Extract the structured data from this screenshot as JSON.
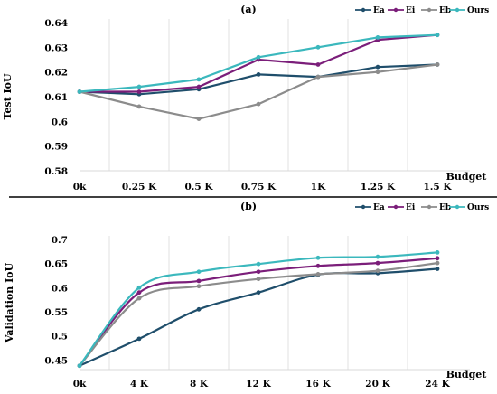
{
  "figure": {
    "palette": {
      "Ea": "#1f4e6b",
      "Ei": "#7b1e7a",
      "Eb": "#8c8c8c",
      "Ours": "#3bb8bd"
    },
    "separator_color": "#000000",
    "grid_color": "#d9d9d9"
  },
  "chart_data": [
    {
      "type": "line",
      "title": "(a)",
      "xlabel": "Budget",
      "ylabel": "Test IoU",
      "categories": [
        "0k",
        "0.25 K",
        "0.5 K",
        "0.75 K",
        "1K",
        "1.25 K",
        "1.5 K"
      ],
      "ylim": [
        0.58,
        0.64
      ],
      "yticks": [
        0.58,
        0.59,
        0.6,
        0.61,
        0.62,
        0.63,
        0.64
      ],
      "ytick_labels": [
        "0.58",
        "0.59",
        "0.6",
        "0.61",
        "0.62",
        "0.63",
        "0.64"
      ],
      "grid": "vertical",
      "legend": "top-right",
      "smooth": false,
      "series": [
        {
          "name": "Ea",
          "values": [
            0.612,
            0.611,
            0.613,
            0.619,
            0.618,
            0.622,
            0.623
          ]
        },
        {
          "name": "Ei",
          "values": [
            0.612,
            0.612,
            0.614,
            0.625,
            0.623,
            0.633,
            0.635
          ]
        },
        {
          "name": "Eb",
          "values": [
            0.612,
            0.606,
            0.601,
            0.607,
            0.618,
            0.62,
            0.623
          ]
        },
        {
          "name": "Ours",
          "values": [
            0.612,
            0.614,
            0.617,
            0.626,
            0.63,
            0.634,
            0.635
          ]
        }
      ]
    },
    {
      "type": "line",
      "title": "(b)",
      "xlabel": "Budget",
      "ylabel": "Validation IoU",
      "categories": [
        "0k",
        "4 K",
        "8 K",
        "12 K",
        "16 K",
        "20 K",
        "24 K"
      ],
      "ylim": [
        0.43,
        0.7
      ],
      "yticks": [
        0.45,
        0.5,
        0.55,
        0.6,
        0.65,
        0.7
      ],
      "ytick_labels": [
        "0.45",
        "0.5",
        "0.55",
        "0.6",
        "0.65",
        "0.7"
      ],
      "grid": "vertical",
      "legend": "top-right",
      "smooth": true,
      "series": [
        {
          "name": "Ea",
          "values": [
            0.438,
            0.494,
            0.555,
            0.59,
            0.627,
            0.63,
            0.639
          ]
        },
        {
          "name": "Ei",
          "values": [
            0.438,
            0.59,
            0.614,
            0.633,
            0.645,
            0.651,
            0.661
          ]
        },
        {
          "name": "Eb",
          "values": [
            0.438,
            0.578,
            0.603,
            0.618,
            0.628,
            0.635,
            0.651
          ]
        },
        {
          "name": "Ours",
          "values": [
            0.438,
            0.6,
            0.633,
            0.649,
            0.662,
            0.664,
            0.673
          ]
        }
      ]
    }
  ]
}
